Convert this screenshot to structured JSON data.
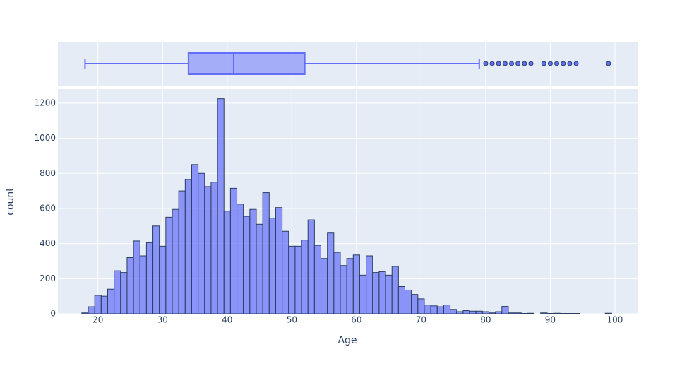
{
  "chart_data": [
    {
      "type": "box",
      "xlim": [
        13.8,
        103.5
      ],
      "xticks": [
        20,
        30,
        40,
        50,
        60,
        70,
        80,
        90,
        100
      ],
      "grid": true,
      "color": "#636efa",
      "min": 18,
      "q1": 34,
      "median": 41,
      "q3": 52,
      "max": 79,
      "outliers": [
        80,
        81,
        82,
        83,
        84,
        85,
        86,
        87,
        89,
        90,
        91,
        92,
        93,
        94,
        99
      ]
    },
    {
      "type": "histogram",
      "x_label": "Age",
      "y_label": "count",
      "color": "#636efa",
      "grid": true,
      "xlim": [
        13.8,
        103.5
      ],
      "xticks": [
        20,
        30,
        40,
        50,
        60,
        70,
        80,
        90,
        100
      ],
      "ylim": [
        0,
        1280
      ],
      "yticks": [
        0,
        200,
        400,
        600,
        800,
        1000,
        1200
      ],
      "bins": [
        17.5,
        18.5,
        19.5,
        20.5,
        21.5,
        22.5,
        23.5,
        24.5,
        25.5,
        26.5,
        27.5,
        28.5,
        29.5,
        30.5,
        31.5,
        32.5,
        33.5,
        34.5,
        35.5,
        36.5,
        37.5,
        38.5,
        39.5,
        40.5,
        41.5,
        42.5,
        43.5,
        44.5,
        45.5,
        46.5,
        47.5,
        48.5,
        49.5,
        50.5,
        51.5,
        52.5,
        53.5,
        54.5,
        55.5,
        56.5,
        57.5,
        58.5,
        59.5,
        60.5,
        61.5,
        62.5,
        63.5,
        64.5,
        65.5,
        66.5,
        67.5,
        68.5,
        69.5,
        70.5,
        71.5,
        72.5,
        73.5,
        74.5,
        75.5,
        76.5,
        77.5,
        78.5,
        79.5,
        80.5,
        81.5,
        82.5,
        83.5,
        84.5,
        85.5,
        86.5,
        87.5,
        88.5,
        89.5,
        90.5,
        91.5,
        92.5,
        93.5,
        94.5,
        95.5,
        96.5,
        97.5,
        98.5,
        99.5
      ],
      "counts": [
        5,
        40,
        105,
        100,
        140,
        245,
        235,
        320,
        415,
        330,
        405,
        500,
        385,
        550,
        595,
        700,
        765,
        850,
        800,
        725,
        750,
        1225,
        585,
        715,
        625,
        555,
        595,
        510,
        690,
        545,
        605,
        470,
        385,
        385,
        420,
        535,
        390,
        315,
        460,
        350,
        275,
        315,
        335,
        220,
        330,
        235,
        240,
        220,
        270,
        155,
        135,
        110,
        85,
        50,
        45,
        40,
        50,
        25,
        12,
        18,
        15,
        15,
        12,
        5,
        12,
        42,
        5,
        5,
        2,
        3,
        0,
        5,
        2,
        3,
        2,
        2,
        2,
        0,
        0,
        0,
        0,
        3
      ]
    }
  ]
}
